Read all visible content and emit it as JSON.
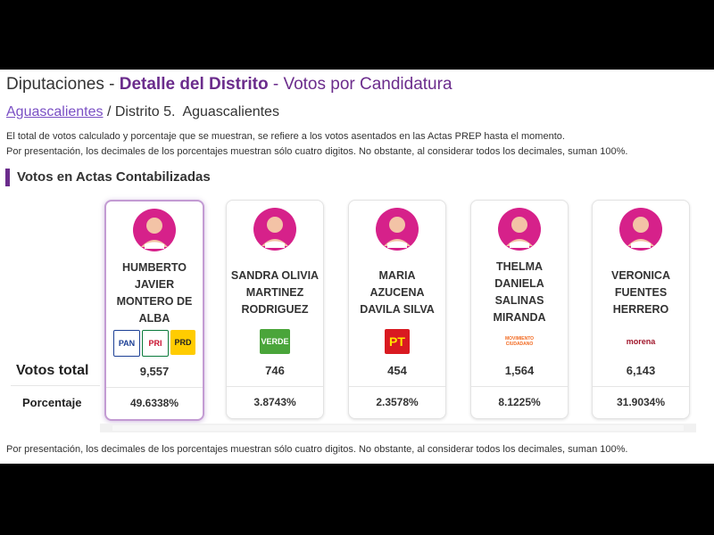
{
  "header": {
    "title_parts": [
      "Diputaciones - ",
      "Detalle del Distrito",
      " - Votos por Candidatura"
    ]
  },
  "breadcrumb": {
    "link": "Aguascalientes",
    "rest": "/ Distrito 5.  Aguascalientes"
  },
  "notes": [
    "El total de votos calculado y porcentaje que se muestran, se refiere a los votos asentados en las Actas PREP hasta el momento.",
    "Por presentación, los decimales de los porcentajes muestran sólo cuatro digitos. No obstante, al considerar todos los decimales, suman 100%."
  ],
  "section_title": "Votos en Actas Contabilizadas",
  "table": {
    "row_labels": [
      "Votos total",
      "Porcentaje"
    ],
    "candidates": [
      {
        "name": "HUMBERTO JAVIER MONTERO DE ALBA",
        "parties": [
          "PAN",
          "PRI",
          "PRD"
        ],
        "votes": "9,557",
        "percent": "49.6338%"
      },
      {
        "name": "SANDRA OLIVIA MARTINEZ RODRIGUEZ",
        "parties": [
          "VERDE"
        ],
        "votes": "746",
        "percent": "3.8743%"
      },
      {
        "name": "MARIA AZUCENA DAVILA SILVA",
        "parties": [
          "PT"
        ],
        "votes": "454",
        "percent": "2.3578%"
      },
      {
        "name": "THELMA DANIELA SALINAS MIRANDA",
        "parties": [
          "MOVIMIENTO CIUDADANO"
        ],
        "votes": "1,564",
        "percent": "8.1225%"
      },
      {
        "name": "VERONICA FUENTES HERRERO",
        "parties": [
          "morena"
        ],
        "votes": "6,143",
        "percent": "31.9034%"
      }
    ]
  },
  "footer_note": "Por presentación, los decimales de los porcentajes muestran sólo cuatro digitos. No obstante, al considerar todos los decimales, suman 100%."
}
